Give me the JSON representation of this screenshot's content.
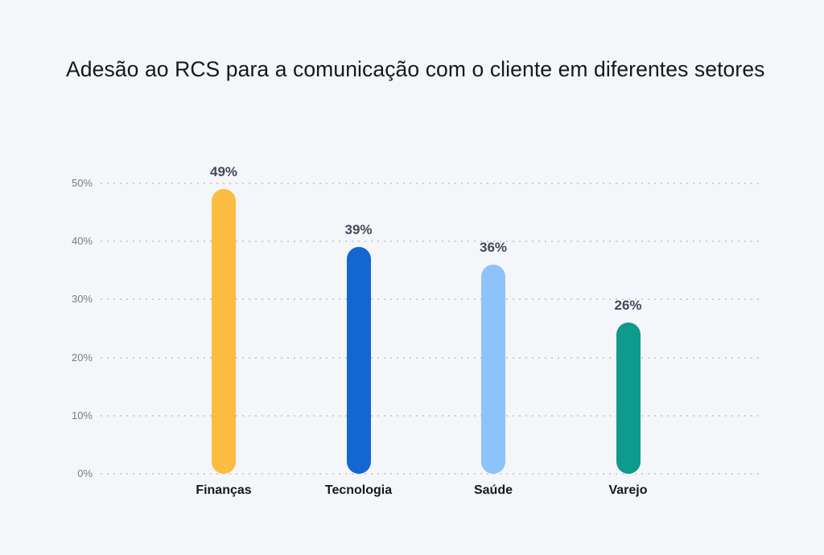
{
  "chart_data": {
    "type": "bar",
    "title": "Adesão ao RCS para a comunicação com o cliente em diferentes setores",
    "categories": [
      "Finanças",
      "Tecnologia",
      "Saúde",
      "Varejo"
    ],
    "values": [
      49,
      39,
      36,
      26
    ],
    "value_labels": [
      "49%",
      "39%",
      "36%",
      "26%"
    ],
    "bar_colors": [
      "#FCBB41",
      "#1467D2",
      "#8DC3FA",
      "#0E9A8C"
    ],
    "xlabel": "",
    "ylabel": "",
    "ylim": [
      0,
      50
    ],
    "yticks": [
      0,
      10,
      20,
      30,
      40,
      50
    ],
    "ytick_labels": [
      "0%",
      "10%",
      "20%",
      "30%",
      "40%",
      "50%"
    ],
    "grid": "horizontal-dotted",
    "legend": "none"
  },
  "colors": {
    "background": "#F4F6F9",
    "gridline": "#CBCED6",
    "ytick_text": "#767D89",
    "value_text": "#424A59",
    "category_text": "#17181B",
    "title_text": "#17181B"
  }
}
